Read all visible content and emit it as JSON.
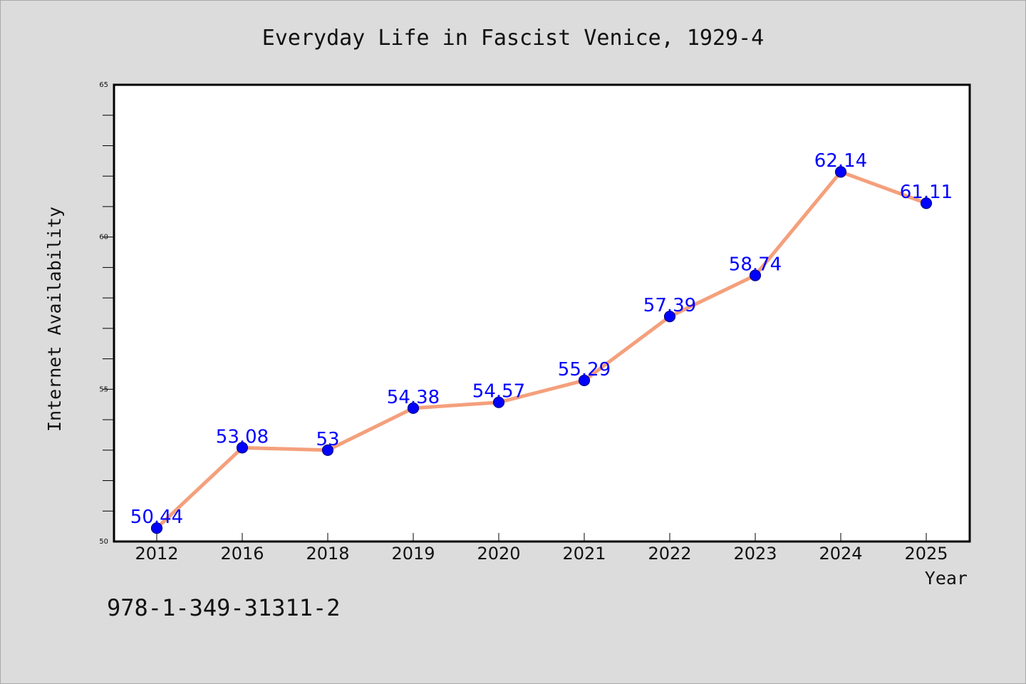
{
  "chart_data": {
    "type": "line",
    "title": "Everyday Life in Fascist Venice, 1929-4",
    "xlabel": "Year",
    "ylabel": "Internet Availability",
    "categories": [
      "2012",
      "2016",
      "2018",
      "2019",
      "2020",
      "2021",
      "2022",
      "2023",
      "2024",
      "2025"
    ],
    "series": [
      {
        "values": [
          50.44,
          53.08,
          53,
          54.38,
          54.57,
          55.29,
          57.39,
          58.74,
          62.14,
          61.11
        ],
        "data_labels": [
          "50.44",
          "53.08",
          "53",
          "54.38",
          "54.57",
          "55.29",
          "57.39",
          "58.74",
          "62.14",
          "61.11"
        ]
      }
    ],
    "ylim": [
      50,
      65
    ],
    "yticks": [
      "50",
      "55",
      "60",
      "65"
    ],
    "grid": false,
    "legend": "none",
    "colors": {
      "line": "#f4a07c",
      "marker": "#0000ff",
      "marker_edge": "#000080",
      "data_label": "#0000ff",
      "background": "#dcdcdc",
      "plot_background": "#ffffff"
    }
  },
  "footer": {
    "isbn": "978-1-349-31311-2"
  }
}
